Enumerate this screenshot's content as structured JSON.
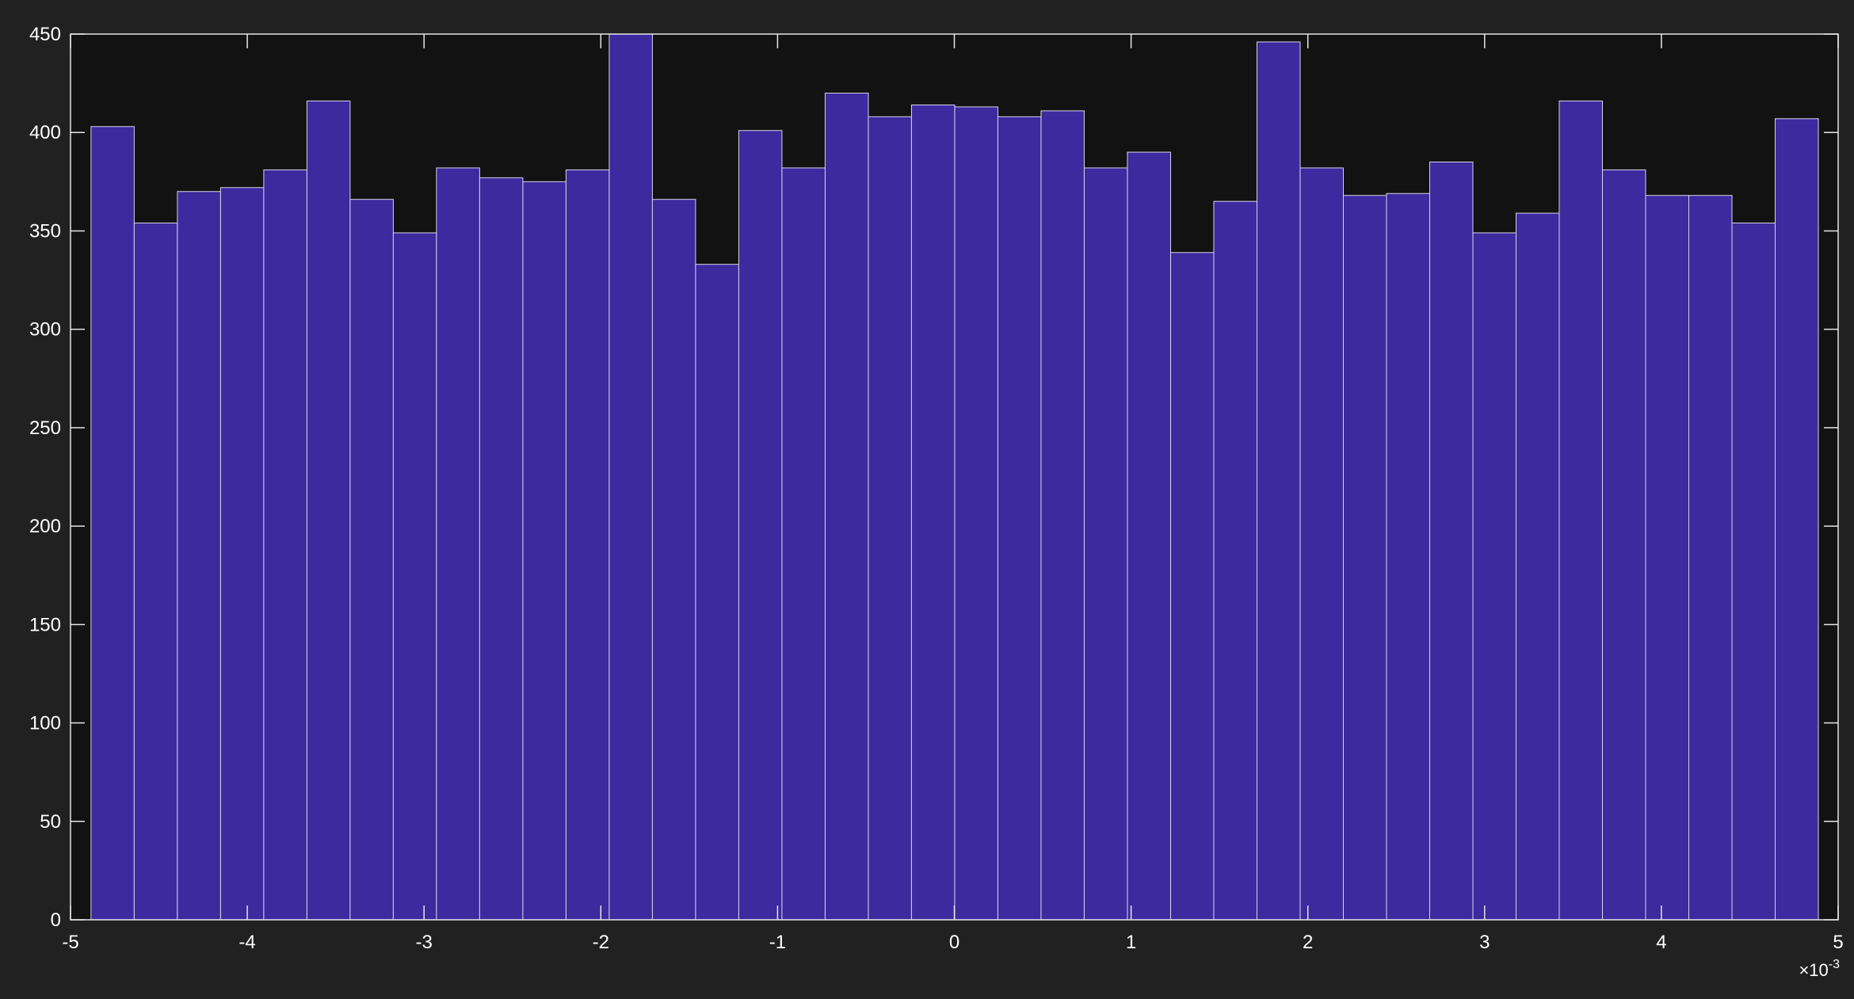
{
  "chart_data": {
    "type": "bar",
    "variant": "histogram",
    "title": "",
    "xlabel": "",
    "ylabel": "",
    "xlim": [
      -5,
      5
    ],
    "ylim": [
      0,
      450
    ],
    "x_exponent_label": "×10",
    "x_exponent_power": "-3",
    "x_ticks": [
      -5,
      -4,
      -3,
      -2,
      -1,
      0,
      1,
      2,
      3,
      4,
      5
    ],
    "x_tick_labels": [
      "-5",
      "-4",
      "-3",
      "-2",
      "-1",
      "0",
      "1",
      "2",
      "3",
      "4",
      "5"
    ],
    "y_ticks": [
      0,
      50,
      100,
      150,
      200,
      250,
      300,
      350,
      400,
      450
    ],
    "y_tick_labels": [
      "0",
      "50",
      "100",
      "150",
      "200",
      "250",
      "300",
      "350",
      "400",
      "450"
    ],
    "bin_start": -4.884,
    "bin_width": 0.2443,
    "counts": [
      403,
      354,
      370,
      372,
      381,
      416,
      366,
      349,
      382,
      377,
      375,
      381,
      452,
      366,
      333,
      401,
      382,
      420,
      408,
      414,
      413,
      408,
      411,
      382,
      390,
      339,
      365,
      446,
      382,
      368,
      369,
      385,
      349,
      359,
      416,
      381,
      368,
      368,
      354,
      407
    ],
    "grid": false,
    "colors": {
      "figure_bg": "#212121",
      "axes_bg": "#121212",
      "bar_fill": "#3c2a9e",
      "bar_edge": "#d8d4ea",
      "axis": "#e6e6e6",
      "text": "#ffffff"
    }
  }
}
